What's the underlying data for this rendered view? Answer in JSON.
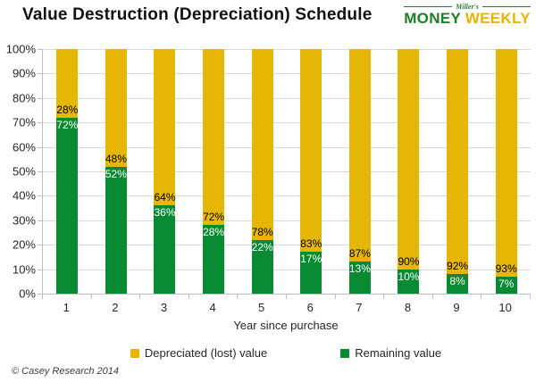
{
  "header": {
    "title": "Value Destruction (Depreciation) Schedule",
    "logo": {
      "script": "Miller's",
      "word1": "MONEY",
      "word2": "WEEKLY"
    }
  },
  "chart_data": {
    "type": "bar",
    "stacked": true,
    "title": "Value Destruction (Depreciation) Schedule",
    "categories": [
      "1",
      "2",
      "3",
      "4",
      "5",
      "6",
      "7",
      "8",
      "9",
      "10"
    ],
    "series": [
      {
        "name": "Depreciated (lost) value",
        "color": "#e5b606",
        "label_color": "#000000",
        "values": [
          28,
          48,
          64,
          72,
          78,
          83,
          87,
          90,
          92,
          93
        ]
      },
      {
        "name": "Remaining value",
        "color": "#088a33",
        "label_color": "#ffffff",
        "values": [
          72,
          52,
          36,
          28,
          22,
          17,
          13,
          10,
          8,
          7
        ]
      }
    ],
    "data_labels": "percent",
    "xlabel": "Year since purchase",
    "ylabel": "",
    "ylim": [
      0,
      100
    ],
    "ytick_step": 10,
    "ytick_labels": [
      "0%",
      "10%",
      "20%",
      "30%",
      "40%",
      "50%",
      "60%",
      "70%",
      "80%",
      "90%",
      "100%"
    ],
    "grid": true,
    "legend_position": "bottom"
  },
  "footer": {
    "copyright": "© Casey Research 2014"
  },
  "colors": {
    "lost": "#e5b606",
    "remaining": "#088a33",
    "gridline": "#d9d9d9",
    "axis": "#bfbfbf",
    "logo_green": "#1e7e24",
    "logo_gold": "#e8b400"
  }
}
